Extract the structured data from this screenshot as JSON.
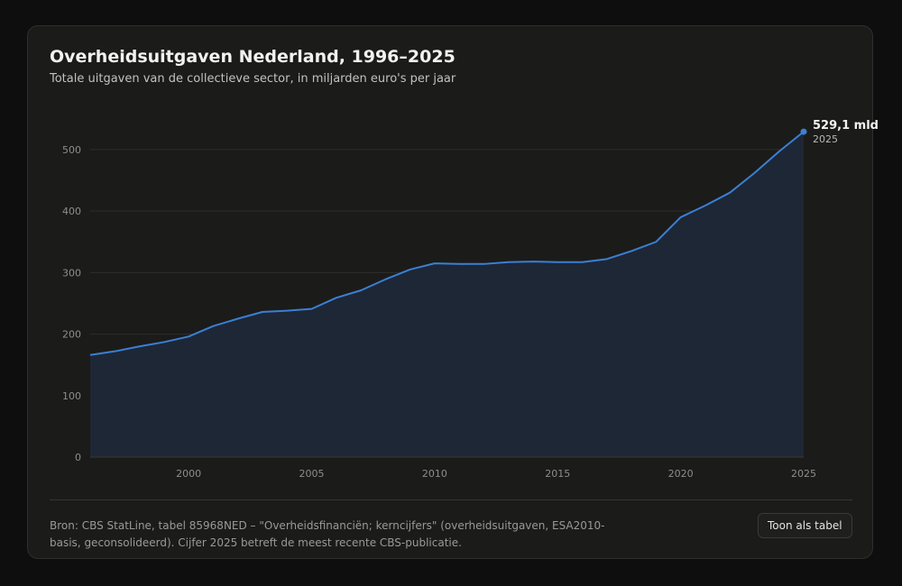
{
  "header": {
    "title": "Overheidsuitgaven Nederland, 1996–2025",
    "subtitle": "Totale uitgaven van de collectieve sector, in miljarden euro's per jaar"
  },
  "chart_data": {
    "type": "area",
    "x": [
      1996,
      1997,
      1998,
      1999,
      2000,
      2001,
      2002,
      2003,
      2004,
      2005,
      2006,
      2007,
      2008,
      2009,
      2010,
      2011,
      2012,
      2013,
      2014,
      2015,
      2016,
      2017,
      2018,
      2019,
      2020,
      2021,
      2022,
      2023,
      2024,
      2025
    ],
    "series": [
      {
        "values": [
          166,
          172,
          180,
          187,
          196,
          213,
          225,
          236,
          238,
          241,
          259,
          271,
          289,
          305,
          315,
          314,
          314,
          317,
          318,
          317,
          317,
          322,
          335,
          350,
          390,
          409,
          430,
          462,
          497,
          529.1
        ]
      }
    ],
    "xlim": [
      1996,
      2025
    ],
    "ylim": [
      0,
      560
    ],
    "x_ticks": [
      2000,
      2005,
      2010,
      2015,
      2020,
      2025
    ],
    "y_ticks": [
      0,
      100,
      200,
      300,
      400,
      500
    ],
    "grid": true,
    "colors": {
      "line": "#3b7fd4",
      "area": "#1e2735",
      "grid": "#2e2e2c"
    },
    "end_label": {
      "value_text": "529,1 mld",
      "year_text": "2025"
    }
  },
  "footer": {
    "source": "Bron: CBS StatLine, tabel 85968NED – \"Overheidsfinanciën; kerncijfers\" (overheidsuitgaven, ESA2010-basis, geconsolideerd). Cijfer 2025 betreft de meest recente CBS-publicatie.",
    "table_button_label": "Toon als tabel"
  }
}
